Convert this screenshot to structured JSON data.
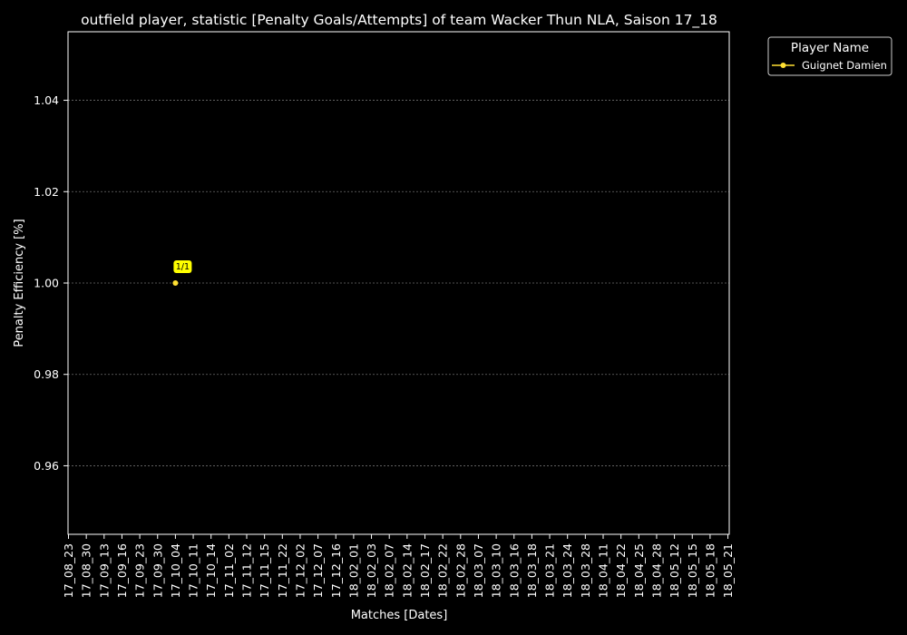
{
  "chart_data": {
    "type": "line",
    "title": "outfield player, statistic [Penalty Goals/Attempts] of team Wacker Thun NLA, Saison 17_18",
    "xlabel": "Matches [Dates]",
    "ylabel": "Penalty Efficiency [%]",
    "categories": [
      "17_08_23",
      "17_08_30",
      "17_09_13",
      "17_09_16",
      "17_09_23",
      "17_09_30",
      "17_10_04",
      "17_10_11",
      "17_10_14",
      "17_11_02",
      "17_11_12",
      "17_11_15",
      "17_11_22",
      "17_12_02",
      "17_12_07",
      "17_12_16",
      "18_02_01",
      "18_02_03",
      "18_02_07",
      "18_02_14",
      "18_02_17",
      "18_02_22",
      "18_02_28",
      "18_03_07",
      "18_03_10",
      "18_03_16",
      "18_03_18",
      "18_03_21",
      "18_03_24",
      "18_03_28",
      "18_04_11",
      "18_04_22",
      "18_04_25",
      "18_04_28",
      "18_05_12",
      "18_05_15",
      "18_05_18",
      "18_05_21"
    ],
    "ylim": [
      0.945,
      1.055
    ],
    "yticks": [
      "0.96",
      "0.98",
      "1.00",
      "1.02",
      "1.04"
    ],
    "grid": true,
    "legend": {
      "title": "Player Name",
      "placement": "outside-top-right"
    },
    "series": [
      {
        "name": "Guignet Damien",
        "color": "#ffe033",
        "points": [
          {
            "x": "17_10_04",
            "y": 1.0,
            "label": "1/1"
          }
        ]
      }
    ]
  },
  "colors": {
    "background": "#000000",
    "foreground": "#ffffff",
    "grid": "#6e6e6e",
    "label_box": "#ffff00"
  }
}
